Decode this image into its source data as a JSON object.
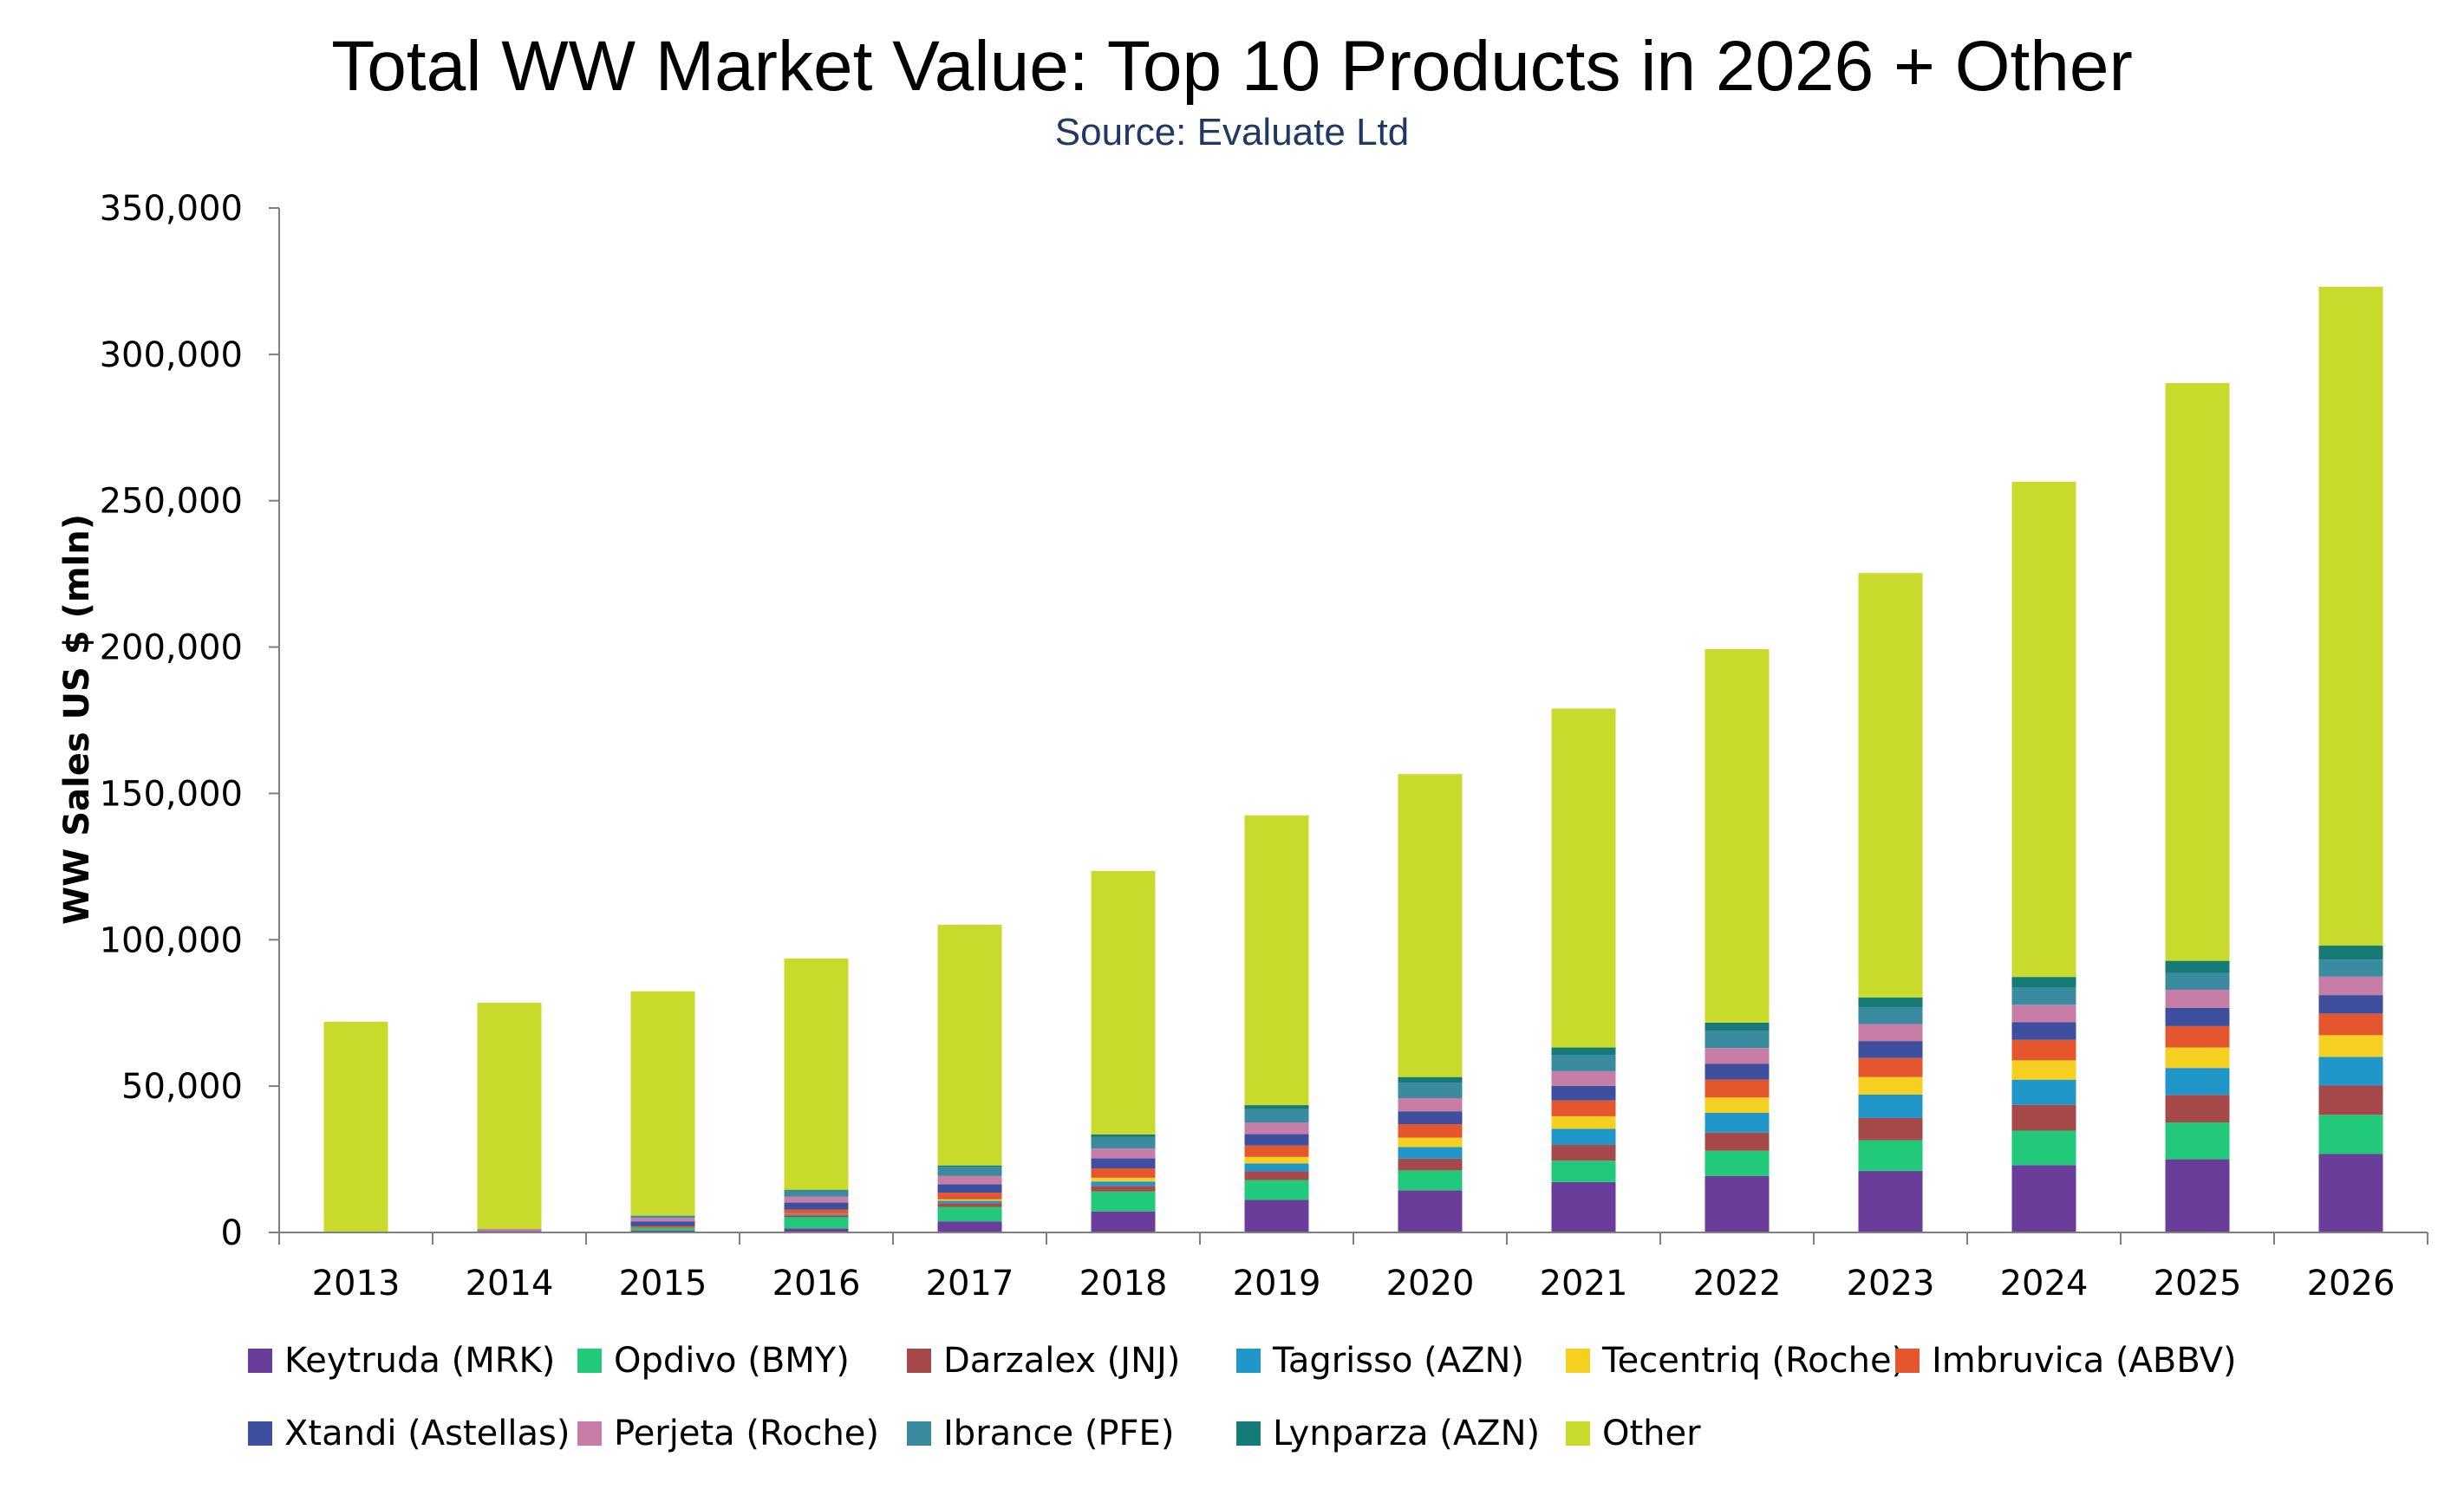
{
  "chart_data": {
    "type": "bar",
    "stacked": true,
    "title": "Total WW Market Value: Top 10 Products in 2026 + Other",
    "subtitle": "Source: Evaluate Ltd",
    "xlabel": "",
    "ylabel": "WW Sales US $ (mln)",
    "ylim": [
      0,
      350000
    ],
    "yticks": [
      "0",
      "50,000",
      "100,000",
      "150,000",
      "200,000",
      "250,000",
      "300,000",
      "350,000"
    ],
    "ytick_values": [
      0,
      50000,
      100000,
      150000,
      200000,
      250000,
      300000,
      350000
    ],
    "grid": false,
    "legend_position": "bottom",
    "categories": [
      "2013",
      "2014",
      "2015",
      "2016",
      "2017",
      "2018",
      "2019",
      "2020",
      "2021",
      "2022",
      "2023",
      "2024",
      "2025",
      "2026"
    ],
    "series": [
      {
        "name": "Keytruda (MRK)",
        "color": "#6a3d9a",
        "values": [
          0,
          0,
          600,
          1400,
          3800,
          7200,
          11100,
          14400,
          17200,
          19300,
          21000,
          23000,
          25000,
          26800
        ]
      },
      {
        "name": "Opdivo (BMY)",
        "color": "#22c97a",
        "values": [
          0,
          0,
          900,
          3800,
          4900,
          6800,
          6800,
          6800,
          7300,
          8600,
          10500,
          11800,
          12600,
          13400
        ]
      },
      {
        "name": "Darzalex (JNJ)",
        "color": "#a5494a",
        "values": [
          0,
          0,
          0,
          600,
          1300,
          1900,
          3000,
          4000,
          5400,
          6200,
          7600,
          8800,
          9400,
          10000
        ]
      },
      {
        "name": "Tagrisso (AZN)",
        "color": "#2196c8",
        "values": [
          0,
          0,
          0,
          400,
          800,
          1500,
          2700,
          4000,
          5500,
          6800,
          8000,
          8600,
          9200,
          9800
        ]
      },
      {
        "name": "Tecentriq (Roche)",
        "color": "#f5d020",
        "values": [
          0,
          0,
          0,
          100,
          500,
          1300,
          2200,
          3200,
          4300,
          5200,
          6000,
          6600,
          7000,
          7400
        ]
      },
      {
        "name": "Imbruvica (ABBV)",
        "color": "#e4572e",
        "values": [
          0,
          0,
          600,
          1500,
          2300,
          3200,
          3900,
          4600,
          5400,
          6100,
          6500,
          7000,
          7300,
          7400
        ]
      },
      {
        "name": "Xtandi (Astellas)",
        "color": "#3f4f9f",
        "values": [
          0,
          500,
          1700,
          2400,
          2900,
          3400,
          3900,
          4400,
          5000,
          5400,
          5800,
          6000,
          6200,
          6300
        ]
      },
      {
        "name": "Perjeta (Roche)",
        "color": "#c87da6",
        "values": [
          0,
          700,
          1200,
          2000,
          2800,
          3400,
          3900,
          4500,
          5000,
          5400,
          5800,
          6000,
          6200,
          6300
        ]
      },
      {
        "name": "Ibrance (PFE)",
        "color": "#3a8aa0",
        "values": [
          0,
          0,
          700,
          2100,
          3100,
          3900,
          4600,
          5300,
          5600,
          5800,
          5800,
          5800,
          5800,
          5800
        ]
      },
      {
        "name": "Lynparza (AZN)",
        "color": "#167a76",
        "values": [
          0,
          0,
          100,
          300,
          500,
          900,
          1400,
          1900,
          2500,
          2900,
          3300,
          3700,
          4100,
          4800
        ]
      },
      {
        "name": "Other",
        "color": "#c8da2b",
        "values": [
          72000,
          77300,
          76600,
          79000,
          82200,
          90000,
          99000,
          103500,
          115800,
          127600,
          145000,
          169200,
          197400,
          225100
        ]
      }
    ]
  }
}
